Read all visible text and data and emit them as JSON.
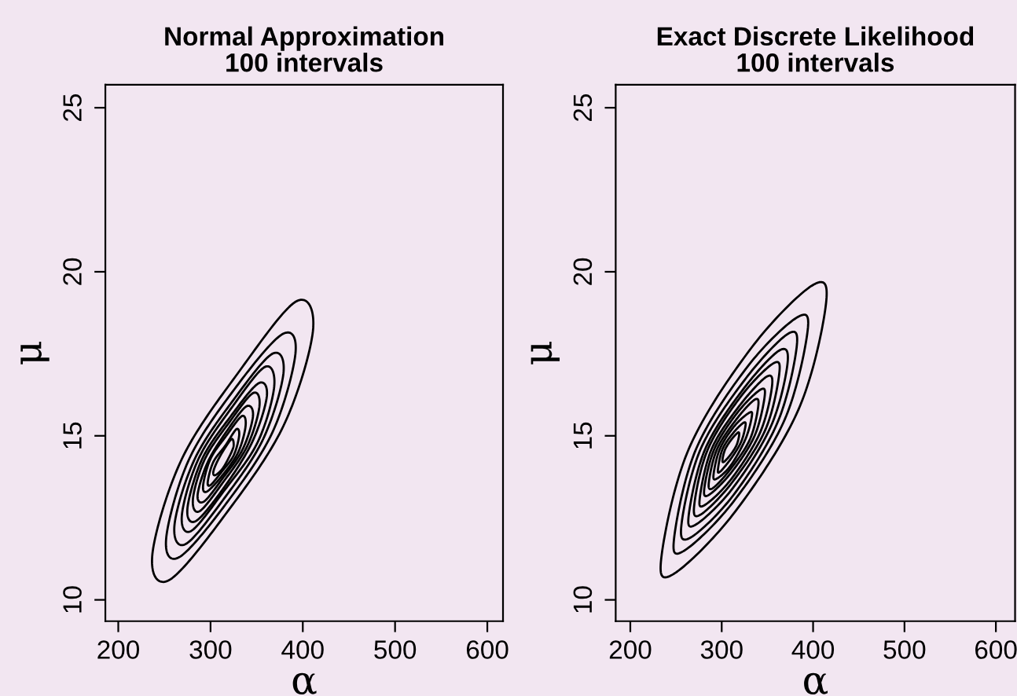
{
  "chart_data": [
    {
      "type": "line",
      "title": "Normal Approximation",
      "subtitle": "100 intervals",
      "xlabel": "α",
      "ylabel": "μ",
      "xlim": [
        186,
        617
      ],
      "ylim": [
        9.35,
        25.7
      ],
      "xticks": [
        200,
        300,
        400,
        500,
        600
      ],
      "yticks": [
        10,
        15,
        20,
        25
      ],
      "grid": false,
      "legend": false
    },
    {
      "type": "line",
      "title": "Exact Discrete Likelihood",
      "subtitle": "100 intervals",
      "xlabel": "α",
      "ylabel": "μ",
      "xlim": [
        184,
        621
      ],
      "ylim": [
        9.35,
        25.7
      ],
      "xticks": [
        200,
        300,
        400,
        500,
        600
      ],
      "yticks": [
        10,
        15,
        20,
        25
      ],
      "grid": false,
      "legend": false
    }
  ]
}
